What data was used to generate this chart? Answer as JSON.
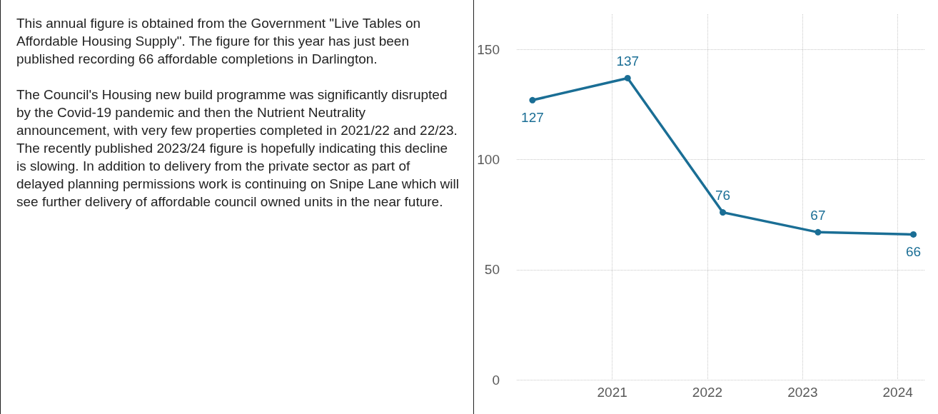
{
  "chart_data": [
    {
      "type": "other",
      "annotations": [
        "This annual figure is obtained from the Government \"Live Tables on Affordable Housing Supply\". The figure for this year has just been published recording 66 affordable completions in Darlington.",
        "The Council's Housing new build programme was significantly disrupted by the Covid-19 pandemic and then the Nutrient Neutrality announcement, with very few properties completed in 2021/22 and 22/23. The recently published 2023/24 figure is hopefully indicating this decline is slowing. In addition to delivery from the private sector as part of delayed planning permissions work is continuing on Snipe Lane which will see further delivery of affordable council owned units in the near future."
      ]
    },
    {
      "type": "line",
      "x": [
        "2020-03-01",
        "2021-03-01",
        "2022-03-01",
        "2023-03-01",
        "2024-03-01"
      ],
      "color": "#1a6e95",
      "values": [
        127,
        137,
        76,
        67,
        66
      ],
      "xlim": [
        "2020-01-01",
        "2024-04-15"
      ],
      "xticks": [
        {
          "value": "2021-01-01",
          "label": "2021"
        },
        {
          "value": "2022-01-01",
          "label": "2022"
        },
        {
          "value": "2023-01-01",
          "label": "2023"
        },
        {
          "value": "2024-01-01",
          "label": "2024"
        }
      ],
      "ylim": [
        0,
        166
      ],
      "yticks": [
        0,
        50,
        100,
        150
      ],
      "grid": true,
      "marker": "circle",
      "data_labels": true
    }
  ]
}
